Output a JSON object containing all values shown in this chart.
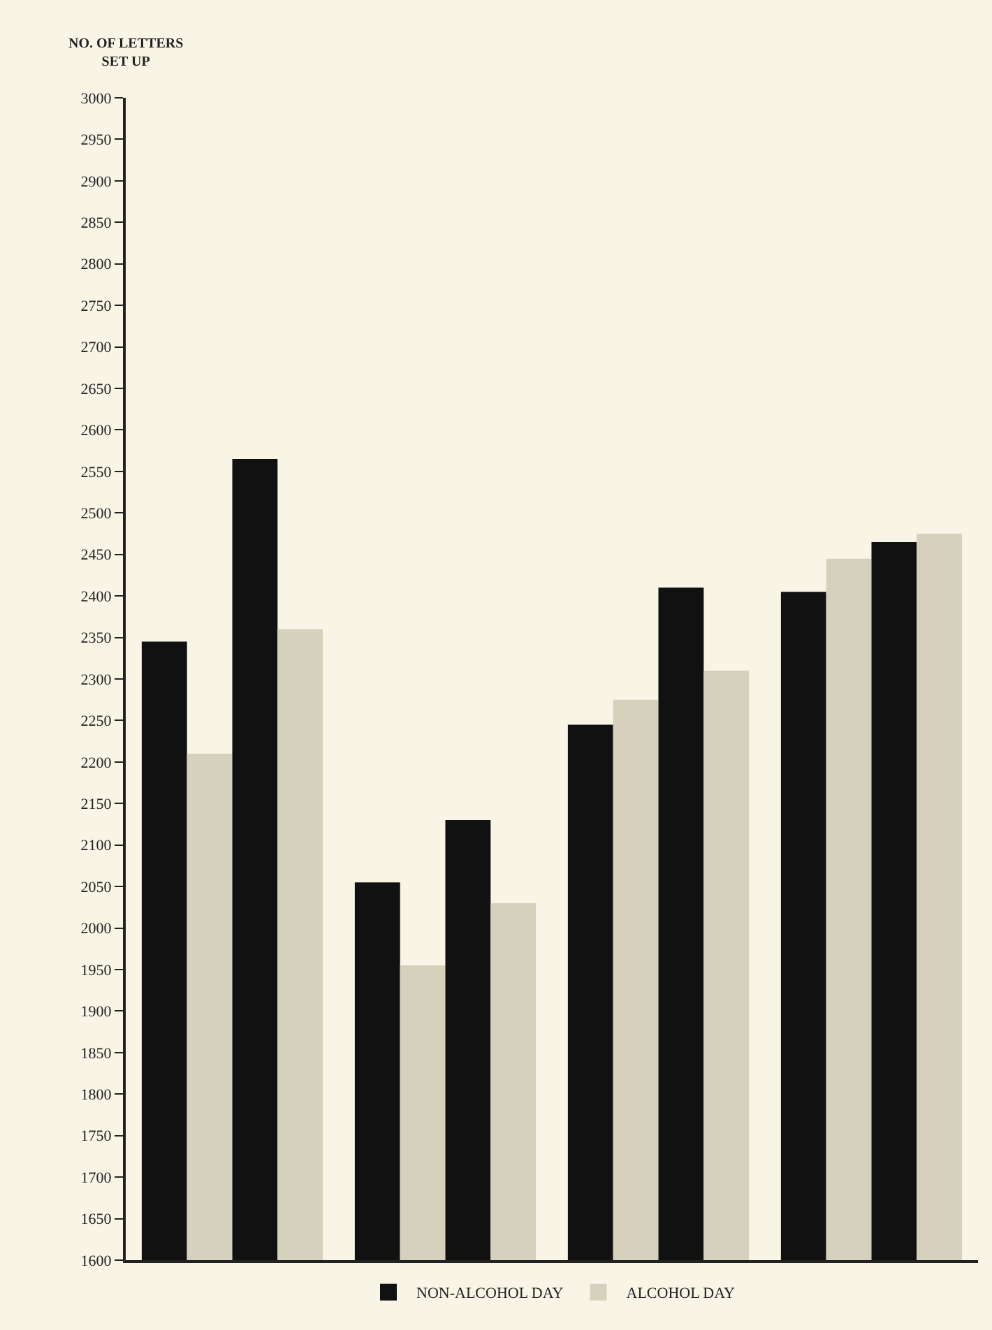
{
  "chart_data": {
    "type": "bar",
    "ylabel": "NO. OF LETTERS\nSET UP",
    "categories": [
      null,
      null,
      null,
      null
    ],
    "series": [
      {
        "name": "NON-ALCOHOL DAY",
        "color": "#111111",
        "values": [
          2345,
          2055,
          2245,
          2405
        ]
      },
      {
        "name": "ALCOHOL DAY",
        "color": "#d6d1bd",
        "values": [
          2210,
          1955,
          2275,
          2445
        ]
      },
      {
        "color": "#111111",
        "values": [
          2565,
          2130,
          2410,
          2465
        ]
      },
      {
        "color": "#d6d1bd",
        "values": [
          2360,
          2030,
          2310,
          2475
        ]
      }
    ],
    "ylim": [
      1600,
      3000
    ],
    "yticks": [
      1600,
      1650,
      1700,
      1750,
      1800,
      1850,
      1900,
      1950,
      2000,
      2050,
      2100,
      2150,
      2200,
      2250,
      2300,
      2350,
      2400,
      2450,
      2500,
      2550,
      2600,
      2650,
      2700,
      2750,
      2800,
      2850,
      2900,
      2950,
      3000
    ],
    "grid": false,
    "legend": "bottom",
    "tick_labels": "y"
  }
}
